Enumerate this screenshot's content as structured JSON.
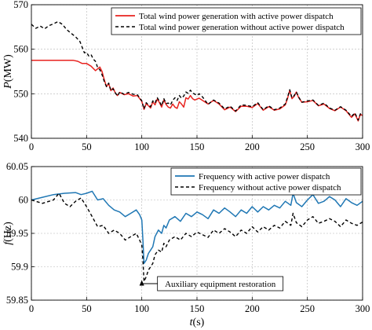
{
  "chart_data": [
    {
      "type": "line",
      "xlabel": "",
      "ylabel": "P(MW)",
      "xlim": [
        0,
        300
      ],
      "ylim": [
        540,
        570
      ],
      "xticks": [
        "0",
        "50",
        "100",
        "150",
        "200",
        "250",
        "300"
      ],
      "yticks": [
        "540",
        "550",
        "560",
        "570"
      ],
      "grid": true,
      "legend_position": "top-right",
      "series": [
        {
          "name": "Total wind power generation with active power dispatch",
          "color": "#e8231f",
          "dash": "solid",
          "x": [
            0,
            38,
            42,
            46,
            50,
            54,
            58,
            62,
            64,
            66,
            68,
            70,
            72,
            74,
            76,
            78,
            80,
            84,
            88,
            92,
            96,
            100,
            102,
            104,
            106,
            108,
            110,
            112,
            114,
            116,
            118,
            120,
            122,
            124,
            126,
            128,
            130,
            132,
            134,
            136,
            138,
            140,
            142,
            144,
            146,
            148,
            150,
            152,
            155,
            160,
            165,
            170,
            175,
            180,
            185,
            190,
            195,
            200,
            205,
            210,
            215,
            220,
            225,
            230,
            232,
            234,
            236,
            238,
            240,
            242,
            245,
            250,
            255,
            260,
            265,
            270,
            275,
            280,
            285,
            290,
            293,
            296,
            298,
            300
          ],
          "y": [
            557.5,
            557.5,
            557.3,
            556.8,
            556.8,
            556.2,
            555.2,
            556.0,
            555.0,
            553.2,
            551.6,
            552.3,
            550.7,
            551.3,
            550.2,
            549.6,
            550.3,
            549.8,
            550.0,
            549.5,
            549.6,
            548.3,
            546.5,
            547.8,
            547.3,
            546.8,
            548.2,
            547.5,
            548.8,
            548.0,
            547.0,
            548.6,
            547.6,
            547.0,
            546.8,
            547.7,
            547.0,
            546.7,
            548.2,
            547.7,
            547.0,
            549.1,
            548.8,
            549.6,
            548.9,
            548.6,
            548.8,
            549.0,
            548.5,
            547.7,
            548.5,
            547.7,
            546.4,
            547.0,
            546.0,
            547.2,
            547.2,
            546.9,
            547.8,
            546.3,
            547.1,
            546.3,
            546.6,
            547.5,
            548.9,
            550.8,
            548.9,
            549.4,
            550.4,
            549.2,
            548.1,
            548.2,
            548.5,
            547.3,
            547.7,
            546.7,
            546.2,
            547.0,
            546.2,
            544.7,
            545.5,
            543.9,
            545.4,
            545.1
          ]
        },
        {
          "name": "Total wind power generation without active power dispatch",
          "color": "#000000",
          "dash": "dashed",
          "x": [
            0,
            4,
            8,
            12,
            16,
            20,
            24,
            28,
            32,
            36,
            40,
            44,
            48,
            50,
            52,
            54,
            56,
            58,
            60,
            62,
            64,
            66,
            68,
            70,
            72,
            74,
            76,
            78,
            80,
            84,
            88,
            92,
            96,
            100,
            102,
            104,
            106,
            108,
            110,
            112,
            114,
            116,
            118,
            120,
            122,
            124,
            126,
            128,
            130,
            132,
            134,
            136,
            138,
            140,
            142,
            144,
            146,
            148,
            150,
            152,
            155,
            160,
            165,
            170,
            175,
            180,
            185,
            190,
            195,
            200,
            205,
            210,
            215,
            220,
            225,
            230,
            232,
            234,
            236,
            238,
            240,
            242,
            245,
            250,
            255,
            260,
            265,
            270,
            275,
            280,
            285,
            290,
            293,
            296,
            298,
            300
          ],
          "y": [
            565.6,
            564.7,
            565.2,
            564.6,
            565.3,
            565.7,
            566.2,
            565.6,
            564.4,
            563.6,
            562.8,
            561.7,
            559.2,
            559.3,
            558.5,
            558.8,
            557.8,
            557.3,
            555.9,
            555.4,
            554.3,
            552.8,
            551.6,
            552.4,
            550.7,
            551.1,
            550.2,
            549.5,
            550.4,
            549.9,
            550.3,
            549.9,
            549.8,
            548.4,
            546.6,
            548.0,
            547.5,
            547.1,
            548.4,
            547.9,
            549.1,
            548.3,
            547.3,
            548.9,
            547.8,
            547.9,
            547.5,
            548.5,
            549.1,
            548.5,
            549.6,
            549.0,
            549.5,
            550.4,
            550.1,
            550.8,
            550.2,
            549.9,
            549.6,
            550.0,
            549.3,
            547.6,
            548.6,
            547.9,
            546.6,
            547.2,
            546.1,
            547.5,
            547.4,
            547.1,
            548.0,
            546.4,
            547.3,
            546.4,
            546.8,
            547.7,
            549.2,
            550.9,
            549.1,
            549.6,
            550.4,
            549.3,
            548.1,
            548.4,
            548.6,
            547.4,
            547.9,
            546.8,
            546.3,
            547.1,
            546.3,
            544.9,
            545.7,
            544.1,
            545.5,
            545.2
          ]
        }
      ]
    },
    {
      "type": "line",
      "xlabel": "t(s)",
      "ylabel": "f(Hz)",
      "xlim": [
        0,
        300
      ],
      "ylim": [
        59.85,
        60.05
      ],
      "xticks": [
        "0",
        "50",
        "100",
        "150",
        "200",
        "250",
        "300"
      ],
      "yticks": [
        "59.85",
        "59.9",
        "59.95",
        "60",
        "60.05"
      ],
      "grid": true,
      "legend_position": "top-right",
      "annotation": {
        "text": "Auxiliary equipment restoration",
        "x": 100,
        "y": 59.88
      },
      "series": [
        {
          "name": "Frequency with active power dispatch",
          "color": "#1f77b4",
          "dash": "solid",
          "x": [
            0,
            10,
            20,
            30,
            40,
            45,
            50,
            55,
            60,
            65,
            70,
            75,
            80,
            85,
            90,
            95,
            98,
            100,
            101,
            102,
            104,
            106,
            108,
            110,
            112,
            115,
            118,
            120,
            122,
            125,
            130,
            135,
            140,
            145,
            150,
            155,
            160,
            165,
            170,
            175,
            180,
            185,
            190,
            195,
            200,
            205,
            210,
            215,
            220,
            225,
            230,
            235,
            237,
            240,
            245,
            250,
            255,
            260,
            265,
            270,
            275,
            280,
            285,
            290,
            295,
            300
          ],
          "y": [
            60.0,
            60.004,
            60.008,
            60.01,
            60.011,
            60.008,
            60.01,
            60.013,
            60.0,
            60.002,
            59.992,
            59.985,
            59.982,
            59.975,
            59.98,
            59.985,
            59.978,
            59.97,
            59.94,
            59.905,
            59.91,
            59.92,
            59.925,
            59.93,
            59.945,
            59.955,
            59.95,
            59.962,
            59.958,
            59.97,
            59.975,
            59.968,
            59.98,
            59.975,
            59.982,
            59.978,
            59.972,
            59.985,
            59.98,
            59.988,
            59.982,
            59.975,
            59.985,
            59.98,
            59.99,
            59.982,
            59.99,
            59.985,
            59.992,
            59.988,
            59.998,
            59.992,
            60.01,
            59.996,
            59.99,
            60.0,
            60.008,
            59.995,
            59.998,
            60.005,
            60.0,
            59.99,
            60.002,
            59.996,
            59.992,
            59.998
          ]
        },
        {
          "name": "Frequency without active power dispatch",
          "color": "#000000",
          "dash": "dashed",
          "x": [
            0,
            10,
            20,
            25,
            30,
            35,
            40,
            45,
            50,
            55,
            60,
            65,
            70,
            75,
            80,
            85,
            90,
            95,
            98,
            100,
            101,
            102,
            104,
            106,
            108,
            110,
            112,
            115,
            118,
            120,
            122,
            125,
            130,
            135,
            140,
            145,
            150,
            155,
            160,
            165,
            170,
            175,
            180,
            185,
            190,
            195,
            200,
            205,
            210,
            215,
            220,
            225,
            230,
            235,
            237,
            240,
            245,
            250,
            255,
            260,
            265,
            270,
            275,
            280,
            285,
            290,
            295,
            300
          ],
          "y": [
            60.0,
            59.995,
            60.0,
            60.01,
            59.995,
            59.99,
            59.998,
            60.003,
            59.99,
            59.975,
            59.96,
            59.962,
            59.95,
            59.955,
            59.95,
            59.94,
            59.945,
            59.95,
            59.94,
            59.932,
            59.91,
            59.878,
            59.885,
            59.895,
            59.9,
            59.905,
            59.918,
            59.925,
            59.922,
            59.935,
            59.93,
            59.94,
            59.945,
            59.94,
            59.95,
            59.945,
            59.952,
            59.948,
            59.944,
            59.955,
            59.95,
            59.957,
            59.952,
            59.945,
            59.955,
            59.95,
            59.96,
            59.952,
            59.96,
            59.955,
            59.962,
            59.958,
            59.968,
            59.962,
            59.98,
            59.966,
            59.96,
            59.97,
            59.975,
            59.965,
            59.968,
            59.972,
            59.968,
            59.96,
            59.97,
            59.965,
            59.962,
            59.967
          ]
        }
      ]
    }
  ]
}
